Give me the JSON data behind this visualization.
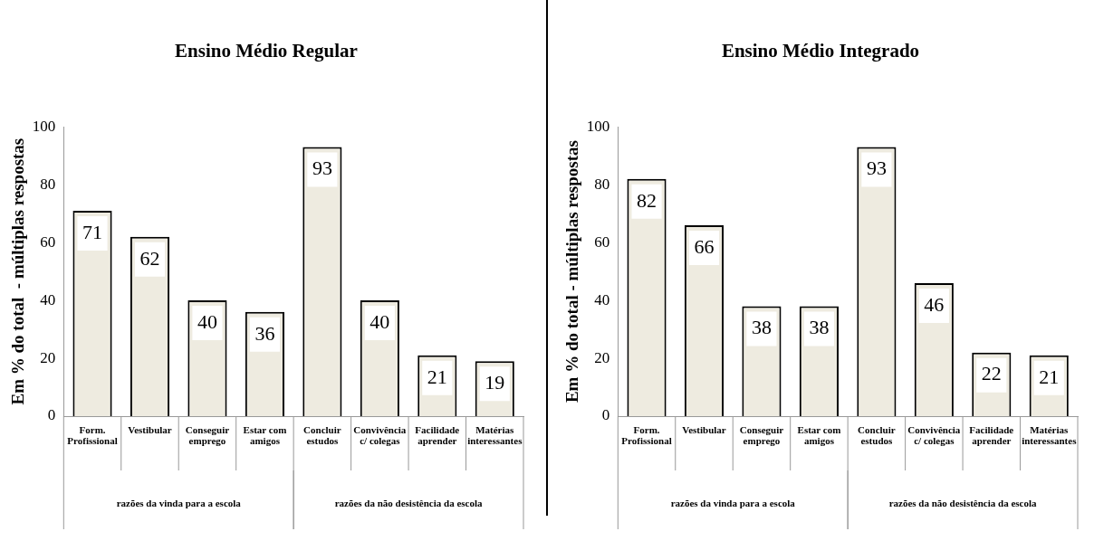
{
  "chart_data": [
    {
      "type": "bar",
      "title": "Ensino Médio Regular",
      "ylabel": "Em % do total  - múltiplas respostas",
      "categories": [
        "Form. Profissional",
        "Vestibular",
        "Conseguir emprego",
        "Estar com amigos",
        "Concluir estudos",
        "Convivência c/ colegas",
        "Facilidade aprender",
        "Matérias interessantes"
      ],
      "values": [
        71,
        62,
        40,
        36,
        93,
        40,
        21,
        19
      ],
      "color": "#eeebe0",
      "ylim": [
        0,
        100
      ],
      "yticks": [
        0,
        20,
        40,
        60,
        80,
        100
      ],
      "data_labels": true,
      "annotations": [
        "razões da vinda para a escola",
        "razões da não desistência da escola"
      ]
    },
    {
      "type": "bar",
      "title": "Ensino Médio Integrado",
      "ylabel": "Em % do total - múltiplas respostas",
      "categories": [
        "Form. Profissional",
        "Vestibular",
        "Conseguir emprego",
        "Estar com amigos",
        "Concluir estudos",
        "Convivência c/ colegas",
        "Facilidade aprender",
        "Matérias interessantes"
      ],
      "values": [
        82,
        66,
        38,
        38,
        93,
        46,
        22,
        21
      ],
      "color": "#eeebe0",
      "ylim": [
        0,
        100
      ],
      "yticks": [
        0,
        20,
        40,
        60,
        80,
        100
      ],
      "data_labels": true,
      "annotations": [
        "razões da vinda para a escola",
        "razões da não desistência da escola"
      ]
    }
  ]
}
